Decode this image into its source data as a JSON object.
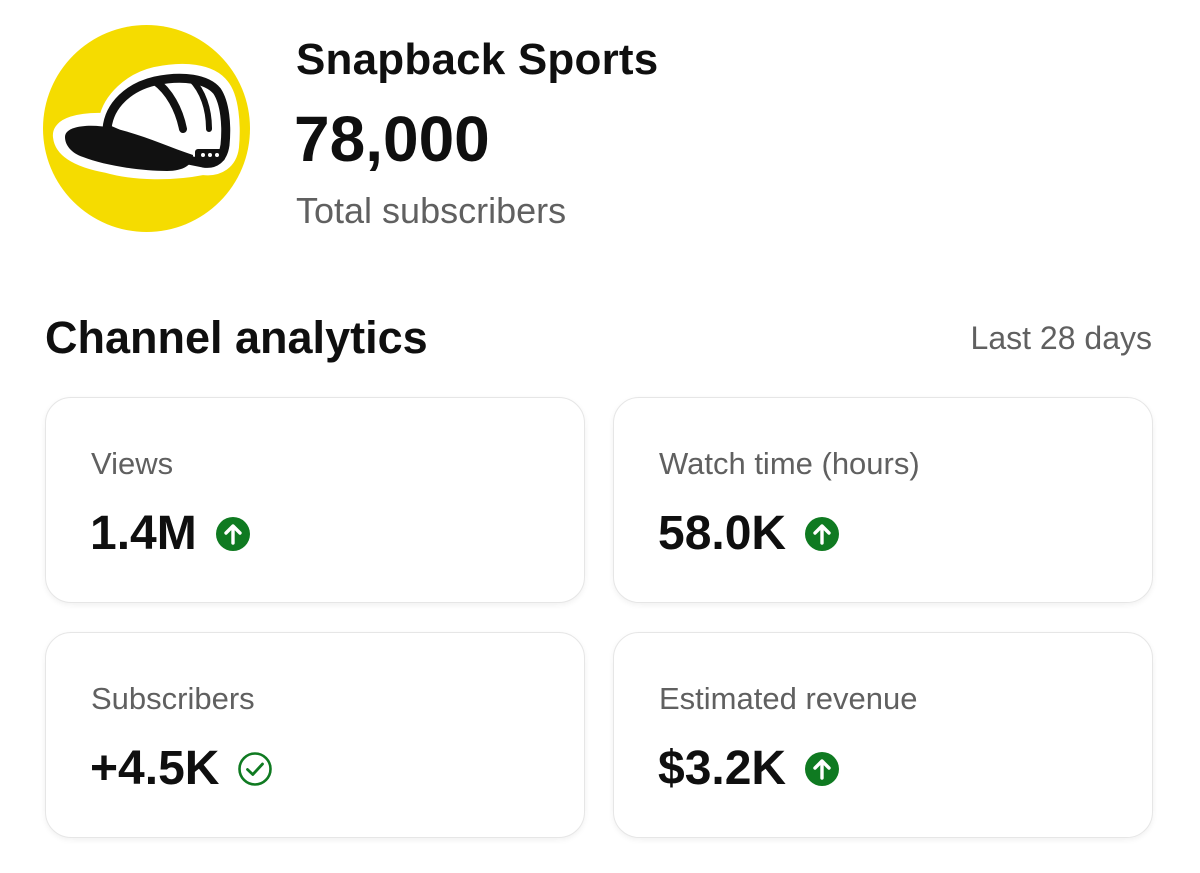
{
  "channel": {
    "name": "Snapback Sports",
    "subscriber_count": "78,000",
    "subscriber_label": "Total subscribers",
    "avatar_icon": "snapback-cap-icon",
    "avatar_color": "#f5dc00"
  },
  "analytics": {
    "title": "Channel analytics",
    "period": "Last 28 days",
    "cards": [
      {
        "label": "Views",
        "value": "1.4M",
        "indicator": "up-arrow-icon"
      },
      {
        "label": "Watch time (hours)",
        "value": "58.0K",
        "indicator": "up-arrow-icon"
      },
      {
        "label": "Subscribers",
        "value": "+4.5K",
        "indicator": "check-circle-icon"
      },
      {
        "label": "Estimated revenue",
        "value": "$3.2K",
        "indicator": "up-arrow-icon"
      }
    ]
  },
  "colors": {
    "trend_green": "#0f7a21",
    "muted_text": "#606060",
    "card_border": "#e6e6e6"
  }
}
